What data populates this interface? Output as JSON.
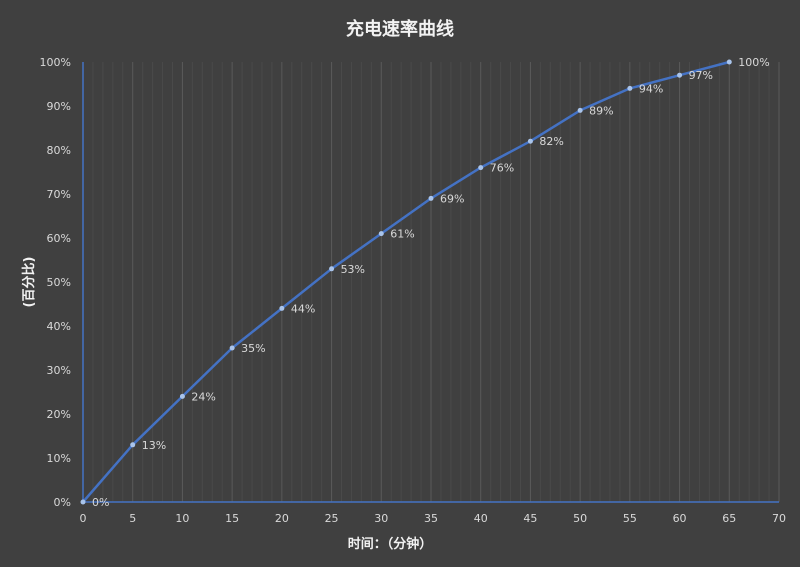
{
  "chart_data": {
    "type": "line",
    "title": "充电速率曲线",
    "xlabel": "时间：（分钟）",
    "ylabel": "(百分比)",
    "x": [
      0,
      5,
      10,
      15,
      20,
      25,
      30,
      35,
      40,
      45,
      50,
      55,
      60,
      65
    ],
    "series": [
      {
        "values": [
          0,
          13,
          24,
          35,
          44,
          53,
          61,
          69,
          76,
          82,
          89,
          94,
          97,
          100
        ]
      }
    ],
    "data_labels": [
      "0%",
      "13%",
      "24%",
      "35%",
      "44%",
      "53%",
      "61%",
      "69%",
      "76%",
      "82%",
      "89%",
      "94%",
      "97%",
      "100%"
    ],
    "xlim": [
      0,
      70
    ],
    "ylim": [
      0,
      100
    ],
    "x_ticks": [
      "0",
      "5",
      "10",
      "15",
      "20",
      "25",
      "30",
      "35",
      "40",
      "45",
      "50",
      "55",
      "60",
      "65",
      "70"
    ],
    "y_ticks": [
      "0%",
      "10%",
      "20%",
      "30%",
      "40%",
      "50%",
      "60%",
      "70%",
      "80%",
      "90%",
      "100%"
    ],
    "grid": "vertical major every 5, minor every 1",
    "colors": {
      "background": "#404040",
      "line": "#4472C4",
      "marker": "#a9c4eb",
      "axis": "#4472C4"
    }
  }
}
